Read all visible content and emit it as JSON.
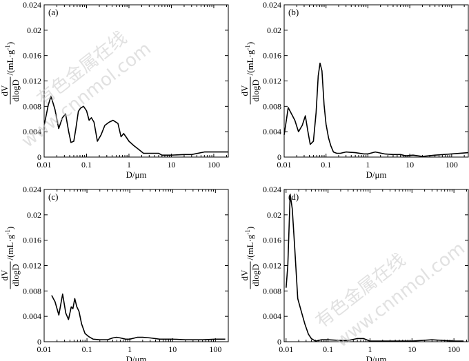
{
  "watermark": {
    "text_cn": "有色金属在线",
    "text_url": "www.cnnmol.com"
  },
  "labels": {
    "y_dv": "dV",
    "y_dlog": "dlogD",
    "y_unit": "/(mL·g",
    "y_exp": "-1",
    "y_close": ")",
    "x_label": "D/μm"
  },
  "chart_data": [
    {
      "type": "line",
      "panel": "(a)",
      "xscale": "log",
      "xlim": [
        0.01,
        220
      ],
      "ylim": [
        0,
        0.024
      ],
      "xticks": [
        {
          "v": 0.01,
          "label": "0.01"
        },
        {
          "v": 0.1,
          "label": "0.1"
        },
        {
          "v": 1,
          "label": "1"
        },
        {
          "v": 10,
          "label": "10"
        },
        {
          "v": 100,
          "label": "100"
        }
      ],
      "yticks": [
        {
          "v": 0,
          "label": "0"
        },
        {
          "v": 0.004,
          "label": "0.004"
        },
        {
          "v": 0.008,
          "label": "0.008"
        },
        {
          "v": 0.012,
          "label": "0.012"
        },
        {
          "v": 0.016,
          "label": "0.016"
        },
        {
          "v": 0.02,
          "label": "0.02"
        },
        {
          "v": 0.024,
          "label": "0.024"
        }
      ],
      "x": [
        0.01,
        0.0125,
        0.0145,
        0.018,
        0.022,
        0.027,
        0.032,
        0.038,
        0.043,
        0.05,
        0.056,
        0.064,
        0.072,
        0.085,
        0.1,
        0.115,
        0.13,
        0.15,
        0.18,
        0.22,
        0.27,
        0.34,
        0.42,
        0.55,
        0.65,
        0.75,
        0.85,
        1,
        1.3,
        1.7,
        2.2,
        3.5,
        5,
        6,
        8,
        10,
        20,
        30,
        60,
        100,
        220
      ],
      "y": [
        0.005,
        0.0082,
        0.0096,
        0.0075,
        0.0045,
        0.0062,
        0.0068,
        0.004,
        0.0023,
        0.0025,
        0.0045,
        0.0072,
        0.0077,
        0.008,
        0.0073,
        0.0058,
        0.0062,
        0.0055,
        0.0025,
        0.0035,
        0.005,
        0.0055,
        0.0058,
        0.0053,
        0.0032,
        0.0037,
        0.0032,
        0.0025,
        0.0018,
        0.0012,
        0.0006,
        0.0006,
        0.0006,
        0.0003,
        0.0003,
        0.0003,
        0.0004,
        0.0004,
        0.0008,
        0.0008,
        0.0008
      ]
    },
    {
      "type": "line",
      "panel": "(b)",
      "xscale": "log",
      "xlim": [
        0.01,
        250
      ],
      "ylim": [
        0,
        0.024
      ],
      "xticks": [
        {
          "v": 0.01,
          "label": "0.01"
        },
        {
          "v": 0.1,
          "label": "0.1"
        },
        {
          "v": 1,
          "label": "1"
        },
        {
          "v": 10,
          "label": "10"
        },
        {
          "v": 100,
          "label": "100"
        }
      ],
      "yticks": [
        {
          "v": 0,
          "label": "0"
        },
        {
          "v": 0.004,
          "label": "0.004"
        },
        {
          "v": 0.008,
          "label": "0.008"
        },
        {
          "v": 0.012,
          "label": "0.012"
        },
        {
          "v": 0.016,
          "label": "0.016"
        },
        {
          "v": 0.02,
          "label": "0.02"
        },
        {
          "v": 0.024,
          "label": "0.024"
        }
      ],
      "x": [
        0.01,
        0.0125,
        0.015,
        0.018,
        0.022,
        0.027,
        0.032,
        0.037,
        0.042,
        0.05,
        0.058,
        0.065,
        0.072,
        0.08,
        0.09,
        0.1,
        0.115,
        0.13,
        0.15,
        0.18,
        0.22,
        0.3,
        0.5,
        0.8,
        1.0,
        1.5,
        2.5,
        4,
        6,
        8,
        12,
        20,
        40,
        100,
        250
      ],
      "y": [
        0.0035,
        0.0078,
        0.0068,
        0.0058,
        0.004,
        0.005,
        0.0065,
        0.004,
        0.002,
        0.0025,
        0.007,
        0.0128,
        0.0148,
        0.0136,
        0.0082,
        0.0052,
        0.003,
        0.0018,
        0.0008,
        0.0006,
        0.0006,
        0.0008,
        0.0007,
        0.0005,
        0.0005,
        0.0008,
        0.0005,
        0.0004,
        0.0004,
        0.0002,
        0.0003,
        0.0001,
        0.0003,
        0.0005,
        0.0007
      ]
    },
    {
      "type": "line",
      "panel": "(c)",
      "xscale": "log",
      "xlim": [
        0.01,
        200
      ],
      "ylim": [
        0,
        0.024
      ],
      "xticks": [
        {
          "v": 0.01,
          "label": "0.01"
        },
        {
          "v": 0.1,
          "label": "0.1"
        },
        {
          "v": 1,
          "label": "1"
        },
        {
          "v": 10,
          "label": "10"
        },
        {
          "v": 100,
          "label": "100"
        }
      ],
      "yticks": [
        {
          "v": 0,
          "label": "0"
        },
        {
          "v": 0.004,
          "label": "0.004"
        },
        {
          "v": 0.008,
          "label": "0.008"
        },
        {
          "v": 0.012,
          "label": "0.012"
        },
        {
          "v": 0.016,
          "label": "0.016"
        },
        {
          "v": 0.02,
          "label": "0.02"
        },
        {
          "v": 0.024,
          "label": "0.024"
        }
      ],
      "x": [
        0.015,
        0.018,
        0.022,
        0.027,
        0.032,
        0.037,
        0.043,
        0.047,
        0.052,
        0.058,
        0.065,
        0.075,
        0.09,
        0.11,
        0.14,
        0.2,
        0.3,
        0.4,
        0.5,
        0.6,
        0.8,
        1.0,
        1.5,
        2,
        3,
        5,
        10,
        20,
        50,
        100,
        170
      ],
      "y": [
        0.0073,
        0.0063,
        0.0042,
        0.0075,
        0.0045,
        0.0035,
        0.0055,
        0.0052,
        0.0068,
        0.0055,
        0.0048,
        0.0028,
        0.0013,
        0.0008,
        0.0004,
        0.0003,
        0.0003,
        0.0006,
        0.0007,
        0.0006,
        0.0004,
        0.0004,
        0.0007,
        0.0007,
        0.0006,
        0.0004,
        0.0004,
        0.0003,
        0.0003,
        0.0004,
        0.0004
      ]
    },
    {
      "type": "line",
      "panel": "(d)",
      "xscale": "log",
      "xlim": [
        0.009,
        220
      ],
      "ylim": [
        0,
        0.024
      ],
      "xticks": [
        {
          "v": 0.01,
          "label": "0.01"
        },
        {
          "v": 0.1,
          "label": "0.1"
        },
        {
          "v": 1,
          "label": "1"
        },
        {
          "v": 10,
          "label": "10"
        },
        {
          "v": 100,
          "label": "100"
        }
      ],
      "yticks": [
        {
          "v": 0,
          "label": "0"
        },
        {
          "v": 0.004,
          "label": "0.004"
        },
        {
          "v": 0.008,
          "label": "0.008"
        },
        {
          "v": 0.012,
          "label": "0.012"
        },
        {
          "v": 0.016,
          "label": "0.016"
        },
        {
          "v": 0.02,
          "label": "0.02"
        },
        {
          "v": 0.024,
          "label": "0.024"
        }
      ],
      "x": [
        0.01,
        0.011,
        0.0125,
        0.014,
        0.016,
        0.019,
        0.023,
        0.028,
        0.034,
        0.04,
        0.05,
        0.07,
        0.1,
        0.2,
        0.3,
        0.5,
        0.7,
        1.0,
        2,
        5,
        10,
        30,
        100,
        170
      ],
      "y": [
        0.0085,
        0.012,
        0.0232,
        0.021,
        0.015,
        0.0068,
        0.0048,
        0.0028,
        0.0012,
        0.0005,
        0.0001,
        0.0003,
        0.0003,
        0.0002,
        0.0002,
        0.0005,
        0.0005,
        0.0001,
        0.0001,
        0.0001,
        0.0001,
        0.0003,
        0.0001,
        0.0001
      ]
    }
  ]
}
